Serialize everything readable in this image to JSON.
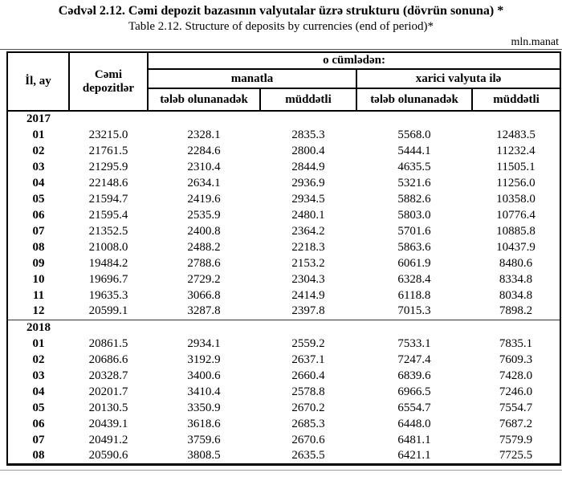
{
  "title_az": "Cədvəl  2.12. Cəmi depozit bazasının valyutalar üzrə strukturu (dövrün sonuna) *",
  "title_en": "Table  2.12. Structure of deposits by currencies (end of period)*",
  "unit": "mln.manat",
  "table": {
    "col_year_month": "İl, ay",
    "col_total": "Cəmi depozitlər",
    "col_of_which": "o cümlədən:",
    "col_manat": "manatla",
    "col_foreign": "xarici valyuta ilə",
    "col_demand": "tələb olunanadək",
    "col_term": "müddətli",
    "sections": [
      {
        "year": "2017",
        "rows": [
          [
            "01",
            "23215.0",
            "2328.1",
            "2835.3",
            "5568.0",
            "12483.5"
          ],
          [
            "02",
            "21761.5",
            "2284.6",
            "2800.4",
            "5444.1",
            "11232.4"
          ],
          [
            "03",
            "21295.9",
            "2310.4",
            "2844.9",
            "4635.5",
            "11505.1"
          ],
          [
            "04",
            "22148.6",
            "2634.1",
            "2936.9",
            "5321.6",
            "11256.0"
          ],
          [
            "05",
            "21594.7",
            "2419.6",
            "2934.5",
            "5882.6",
            "10358.0"
          ],
          [
            "06",
            "21595.4",
            "2535.9",
            "2480.1",
            "5803.0",
            "10776.4"
          ],
          [
            "07",
            "21352.5",
            "2400.8",
            "2364.2",
            "5701.6",
            "10885.8"
          ],
          [
            "08",
            "21008.0",
            "2488.2",
            "2218.3",
            "5863.6",
            "10437.9"
          ],
          [
            "09",
            "19484.2",
            "2788.6",
            "2153.2",
            "6061.9",
            "8480.6"
          ],
          [
            "10",
            "19696.7",
            "2729.2",
            "2304.3",
            "6328.4",
            "8334.8"
          ],
          [
            "11",
            "19635.3",
            "3066.8",
            "2414.9",
            "6118.8",
            "8034.8"
          ],
          [
            "12",
            "20599.1",
            "3287.8",
            "2397.8",
            "7015.3",
            "7898.2"
          ]
        ]
      },
      {
        "year": "2018",
        "rows": [
          [
            "01",
            "20861.5",
            "2934.1",
            "2559.2",
            "7533.1",
            "7835.1"
          ],
          [
            "02",
            "20686.6",
            "3192.9",
            "2637.1",
            "7247.4",
            "7609.3"
          ],
          [
            "03",
            "20328.7",
            "3400.6",
            "2660.4",
            "6839.6",
            "7428.0"
          ],
          [
            "04",
            "20201.7",
            "3410.4",
            "2578.8",
            "6966.5",
            "7246.0"
          ],
          [
            "05",
            "20130.5",
            "3350.9",
            "2670.2",
            "6554.7",
            "7554.7"
          ],
          [
            "06",
            "20439.1",
            "3618.6",
            "2685.3",
            "6448.0",
            "7687.2"
          ],
          [
            "07",
            "20491.2",
            "3759.6",
            "2670.6",
            "6481.1",
            "7579.9"
          ],
          [
            "08",
            "20590.6",
            "3808.5",
            "2635.5",
            "6421.1",
            "7725.5"
          ]
        ]
      }
    ]
  }
}
